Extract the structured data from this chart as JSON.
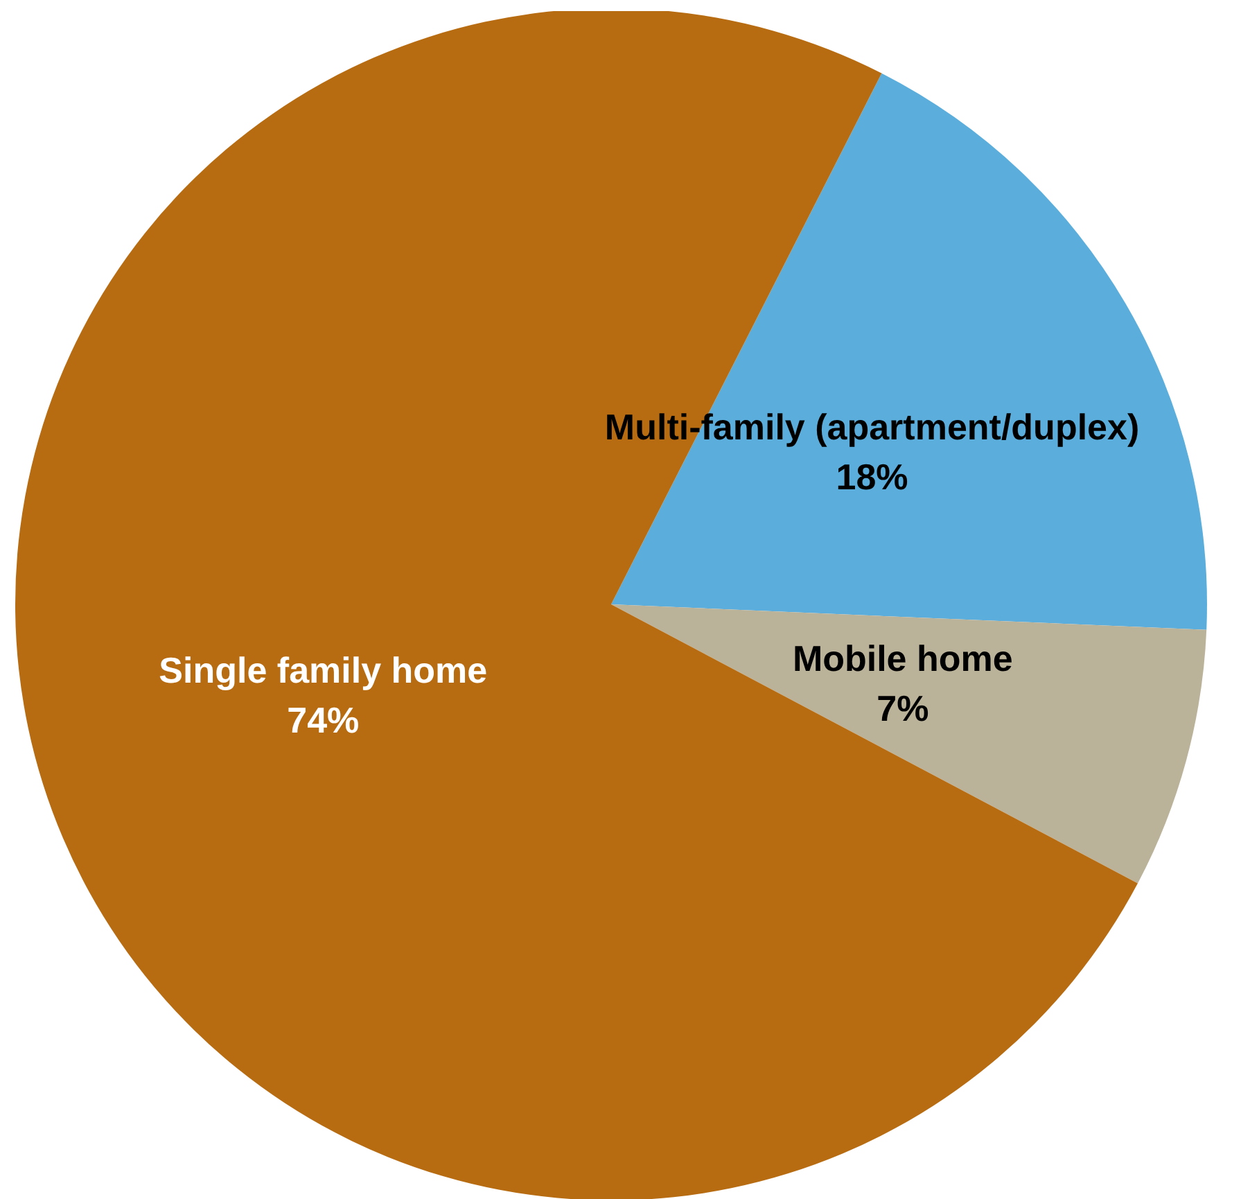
{
  "chart_data": {
    "type": "pie",
    "categories": [
      "Multi-family (apartment/duplex)",
      "Mobile home",
      "Single family home"
    ],
    "values": [
      18,
      7,
      74
    ],
    "colors": [
      "#5baedc",
      "#bbb29a",
      "#b86c12"
    ],
    "value_labels": [
      "18%",
      "7%",
      "74%"
    ]
  }
}
